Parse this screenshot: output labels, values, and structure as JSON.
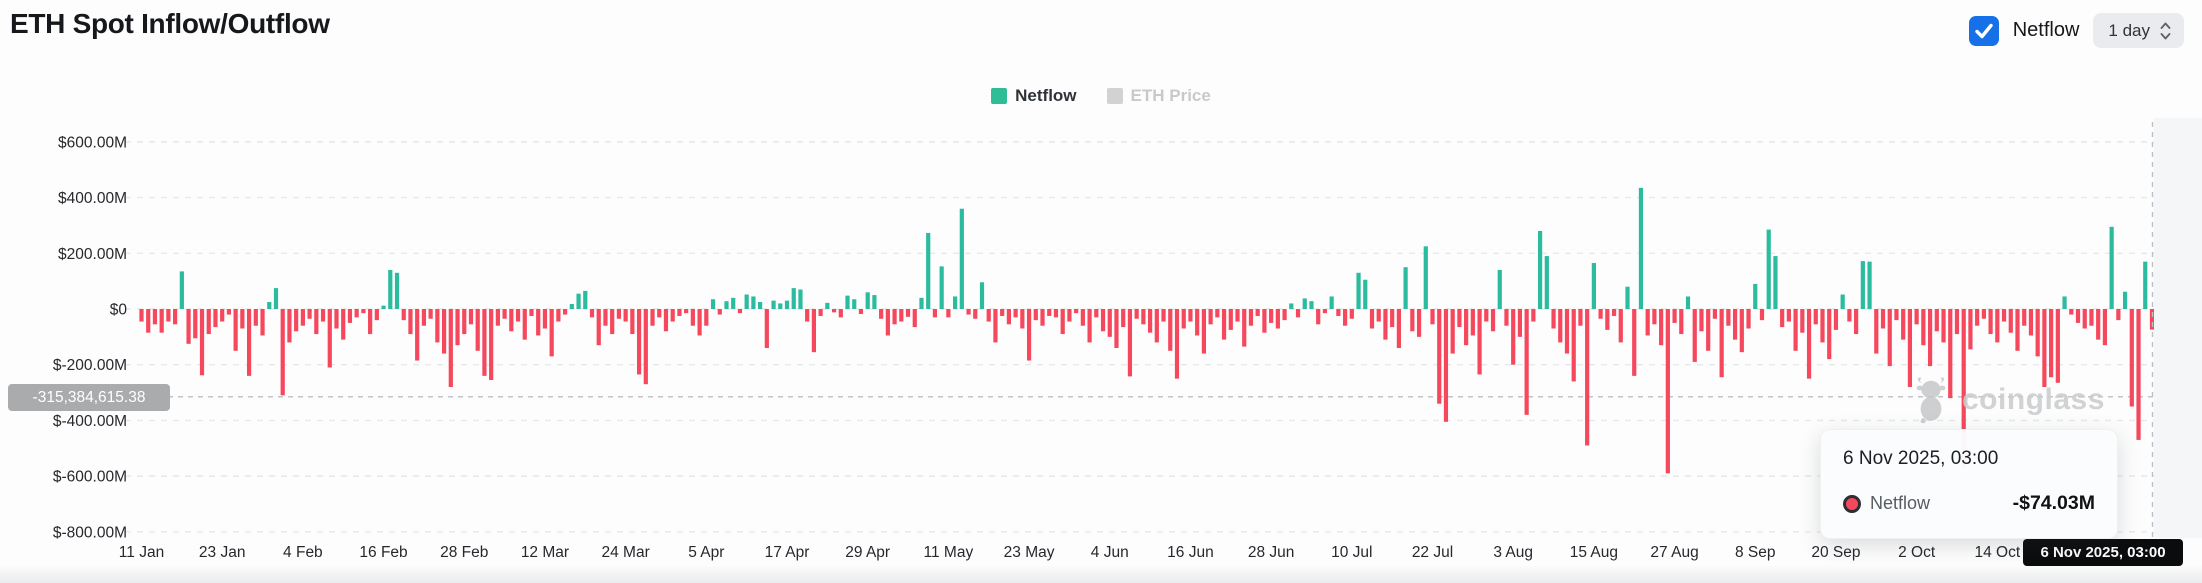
{
  "header": {
    "title": "ETH Spot Inflow/Outflow",
    "netflow_toggle_label": "Netflow",
    "interval_selector_value": "1 day"
  },
  "legend": {
    "items": [
      {
        "label": "Netflow",
        "color": "#2ebd97",
        "active": true
      },
      {
        "label": "ETH Price",
        "color": "#d0d2d4",
        "active": false
      }
    ]
  },
  "colors": {
    "positive_bar": "#2bbb9f",
    "negative_bar": "#f5485d",
    "checkbox_blue": "#1670e8",
    "grid_line": "#e7e8ea",
    "crosshair": "#bcbfc3",
    "tick_text": "#26282c"
  },
  "y_axis": {
    "ticks": [
      "$600.00M",
      "$400.00M",
      "$200.00M",
      "$0",
      "$-200.00M",
      "$-400.00M",
      "$-600.00M",
      "$-800.00M"
    ],
    "hover_label": "-315,384,615.38"
  },
  "x_axis": {
    "ticks": [
      "11 Jan",
      "23 Jan",
      "4 Feb",
      "16 Feb",
      "28 Feb",
      "12 Mar",
      "24 Mar",
      "5 Apr",
      "17 Apr",
      "29 Apr",
      "11 May",
      "23 May",
      "4 Jun",
      "16 Jun",
      "28 Jun",
      "10 Jul",
      "22 Jul",
      "3 Aug",
      "15 Aug",
      "27 Aug",
      "8 Sep",
      "20 Sep",
      "2 Oct",
      "14 Oct"
    ],
    "hover_label": "6 Nov 2025, 03:00"
  },
  "tooltip": {
    "date": "6 Nov 2025, 03:00",
    "series": "Netflow",
    "value": "-$74.03M"
  },
  "watermark_text": "coinglass",
  "chart_data": {
    "type": "bar",
    "title": "ETH Spot Inflow/Outflow",
    "series_name": "Netflow",
    "unit": "USD millions",
    "interval": "1 day",
    "start_date": "11 Jan 2025",
    "end_date": "6 Nov 2025",
    "ylim": [
      -800,
      600
    ],
    "y_tick_values": [
      600,
      400,
      200,
      0,
      -200,
      -400,
      -600,
      -800
    ],
    "grid": true,
    "legend_position": "top-center",
    "hovered_point": {
      "date": "6 Nov 2025, 03:00",
      "value_musd": -74.03,
      "crosshair_y_value": -315.384615
    },
    "values": [
      -45,
      -85,
      -55,
      -85,
      -45,
      -55,
      135,
      -125,
      -105,
      -238,
      -90,
      -65,
      -45,
      -20,
      -150,
      -70,
      -240,
      -60,
      -95,
      25,
      75,
      -310,
      -120,
      -80,
      -60,
      -35,
      -90,
      -45,
      -210,
      -70,
      -110,
      -50,
      -30,
      -15,
      -90,
      -40,
      12,
      140,
      130,
      -40,
      -90,
      -185,
      -60,
      -35,
      -120,
      -160,
      -280,
      -130,
      -90,
      -55,
      -150,
      -240,
      -255,
      -60,
      -35,
      -80,
      -45,
      -110,
      -25,
      -95,
      -70,
      -170,
      -45,
      -20,
      18,
      55,
      65,
      -30,
      -130,
      -60,
      -90,
      -35,
      -45,
      -90,
      -235,
      -270,
      -60,
      -30,
      -80,
      -45,
      -25,
      -15,
      -60,
      -95,
      -60,
      35,
      -20,
      28,
      40,
      -15,
      52,
      45,
      25,
      -140,
      30,
      20,
      30,
      75,
      70,
      -45,
      -155,
      -25,
      22,
      -12,
      -30,
      48,
      35,
      -18,
      60,
      50,
      -35,
      -95,
      -55,
      -45,
      -28,
      -65,
      40,
      273,
      -30,
      153,
      -30,
      45,
      360,
      -20,
      -35,
      96,
      -45,
      -120,
      -25,
      -55,
      -30,
      -70,
      -185,
      -40,
      -60,
      -25,
      -30,
      -90,
      -45,
      -15,
      -60,
      -120,
      -30,
      -80,
      -100,
      -140,
      -65,
      -242,
      -35,
      -55,
      -85,
      -120,
      -45,
      -150,
      -250,
      -70,
      -45,
      -95,
      -160,
      -55,
      -30,
      -110,
      -75,
      -45,
      -135,
      -60,
      -25,
      -85,
      -50,
      -70,
      -40,
      20,
      -30,
      38,
      28,
      -55,
      -15,
      45,
      -25,
      -60,
      -35,
      130,
      105,
      -70,
      -45,
      -110,
      -65,
      -140,
      150,
      -80,
      -100,
      225,
      -55,
      -340,
      -405,
      -160,
      -65,
      -130,
      -95,
      -235,
      -45,
      -80,
      140,
      -60,
      -200,
      -100,
      -380,
      -45,
      280,
      190,
      -70,
      -120,
      -160,
      -260,
      -60,
      -490,
      165,
      -35,
      -75,
      -25,
      -120,
      80,
      -240,
      435,
      -95,
      -55,
      -130,
      -590,
      -50,
      -90,
      45,
      -190,
      -80,
      -150,
      -35,
      -245,
      -60,
      -110,
      -155,
      -70,
      90,
      -40,
      285,
      190,
      -65,
      -45,
      -150,
      -85,
      -250,
      -55,
      -120,
      -180,
      -75,
      52,
      -45,
      -90,
      172,
      170,
      -160,
      -70,
      -205,
      -40,
      -110,
      -280,
      -55,
      -130,
      -205,
      -80,
      -120,
      -320,
      -90,
      -570,
      -145,
      -60,
      -35,
      -90,
      -120,
      -45,
      -85,
      -150,
      -60,
      -95,
      -170,
      -280,
      -245,
      -265,
      45,
      -20,
      -50,
      -70,
      -60,
      -110,
      -130,
      295,
      -40,
      62,
      -350,
      -470,
      170,
      -74.03
    ]
  }
}
